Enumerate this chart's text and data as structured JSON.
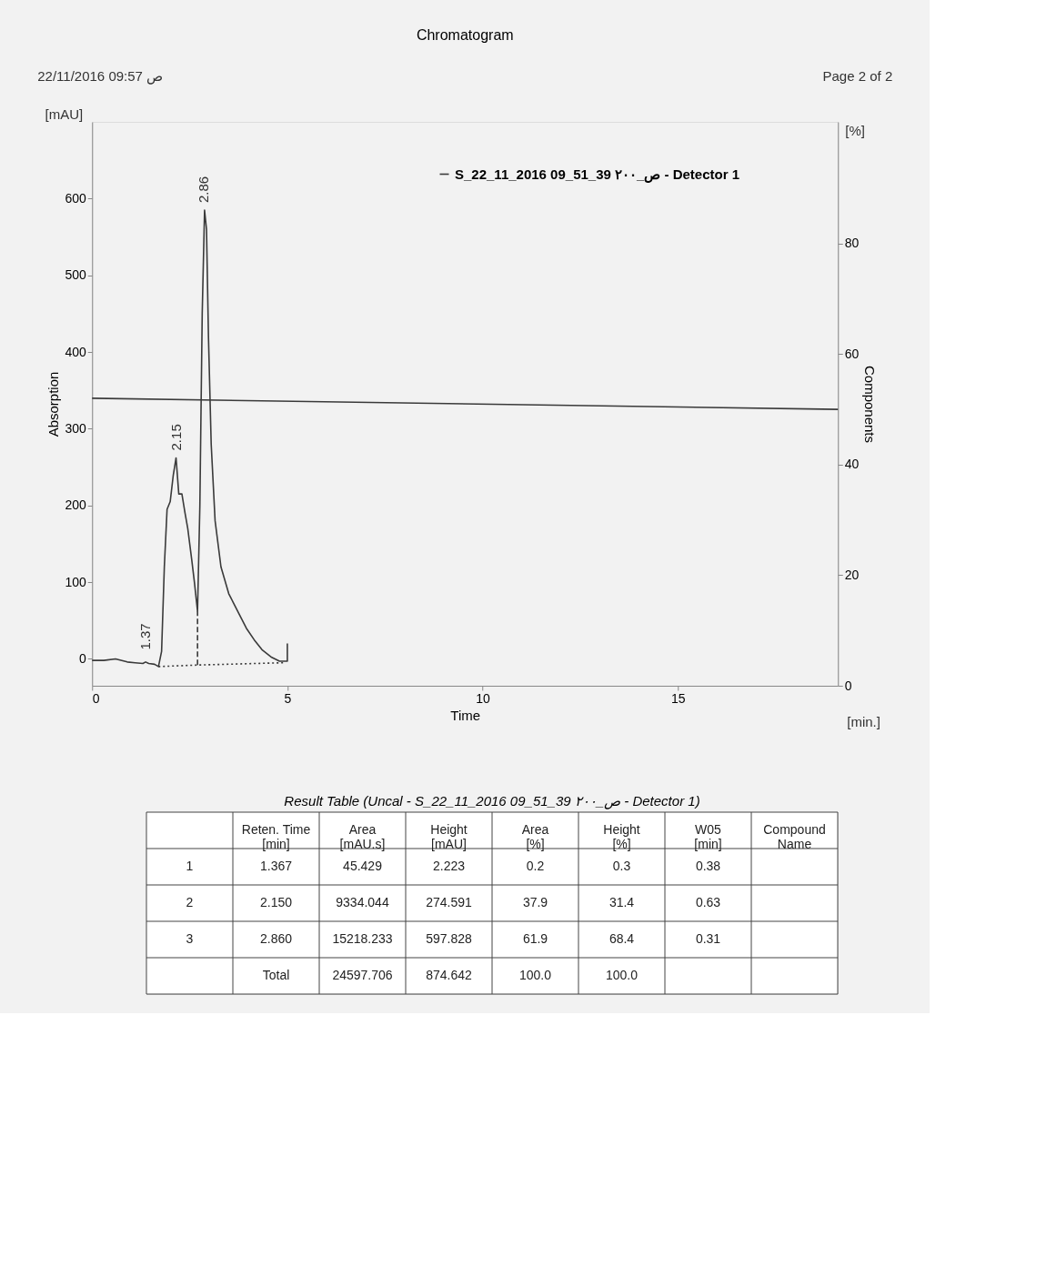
{
  "chart_data": [
    {
      "type": "line",
      "title": "Chromatogram",
      "xlabel": "Time",
      "ylabel": "Absorption",
      "y2label": "Components",
      "xlim": [
        0,
        19.1
      ],
      "xticks": [
        0,
        5,
        10,
        15
      ],
      "ylim": [
        -35,
        700
      ],
      "yticks": [
        0,
        100,
        200,
        300,
        400,
        500,
        600
      ],
      "y2lim": [
        0,
        102
      ],
      "y2ticks": [
        0,
        20,
        40,
        60,
        80
      ],
      "grid": false,
      "legend": "top right",
      "marker": "none",
      "annotations": [
        "22/11/2016 09:57 ص",
        "Page 2 of 2",
        "[mAU]",
        "[%]",
        "[min.]",
        {
          "text": "1.37",
          "x": 1.37,
          "y": 2.2
        },
        {
          "text": "2.15",
          "x": 2.15,
          "y": 262
        },
        {
          "text": "2.86",
          "x": 2.86,
          "y": 585
        }
      ],
      "series": [
        {
          "name": "S_22_11_2016 09_51_39 ص_٢٠٠ - Detector 1",
          "type": "line",
          "color": "#3a3a3a",
          "line_style": "solid",
          "x": [
            0,
            0.3,
            0.6,
            0.9,
            1.1,
            1.3,
            1.37,
            1.45,
            1.6,
            1.7,
            1.78,
            1.85,
            1.92,
            2.0,
            2.08,
            2.15,
            2.22,
            2.3,
            2.38,
            2.45,
            2.55,
            2.62,
            2.7,
            2.76,
            2.82,
            2.88,
            2.93,
            2.98,
            3.05,
            3.15,
            3.3,
            3.5,
            3.75,
            3.95,
            4.15,
            4.35,
            4.6,
            4.8,
            5.0,
            5.0
          ],
          "values": [
            -2,
            -2,
            0,
            -4,
            -5,
            -6,
            -4,
            -6,
            -7,
            -10,
            10,
            120,
            195,
            205,
            240,
            262,
            215,
            215,
            190,
            170,
            130,
            100,
            62,
            200,
            450,
            585,
            560,
            420,
            280,
            180,
            120,
            85,
            60,
            40,
            25,
            12,
            2,
            -3,
            -3,
            20
          ]
        },
        {
          "type": "line",
          "color": "#3a3a3a",
          "line_style": "dotted",
          "x": [
            1.7,
            2.7,
            4.9
          ],
          "values": [
            -10,
            -8,
            -5
          ]
        },
        {
          "type": "line",
          "color": "#3a3a3a",
          "line_style": "dashed",
          "x": [
            2.7,
            2.7
          ],
          "values": [
            -8,
            62
          ]
        },
        {
          "type": "line",
          "color": "#3a3a3a",
          "line_style": "solid",
          "axis": "y2",
          "x": [
            0,
            19.1
          ],
          "values": [
            52,
            50
          ]
        }
      ]
    },
    {
      "type": "other",
      "title": "Result Table (Uncal - S_22_11_2016 09_51_39 ص_٢٠٠ - Detector 1)",
      "categories": [
        null,
        "Reten. Time\n[min]",
        "Area\n[mAU.s]",
        "Height\n[mAU]",
        "Area\n[%]",
        "Height\n[%]",
        "W05\n[min]",
        "Compound\nName"
      ],
      "cell_labels": [
        [
          "1",
          "1.367",
          "45.429",
          "2.223",
          "0.2",
          "0.3",
          "0.38",
          null
        ],
        [
          "2",
          "2.150",
          "9334.044",
          "274.591",
          "37.9",
          "31.4",
          "0.63",
          null
        ],
        [
          "3",
          "2.860",
          "15218.233",
          "597.828",
          "61.9",
          "68.4",
          "0.31",
          null
        ],
        [
          null,
          "Total",
          "24597.706",
          "874.642",
          "100.0",
          "100.0",
          null,
          null
        ]
      ]
    }
  ]
}
